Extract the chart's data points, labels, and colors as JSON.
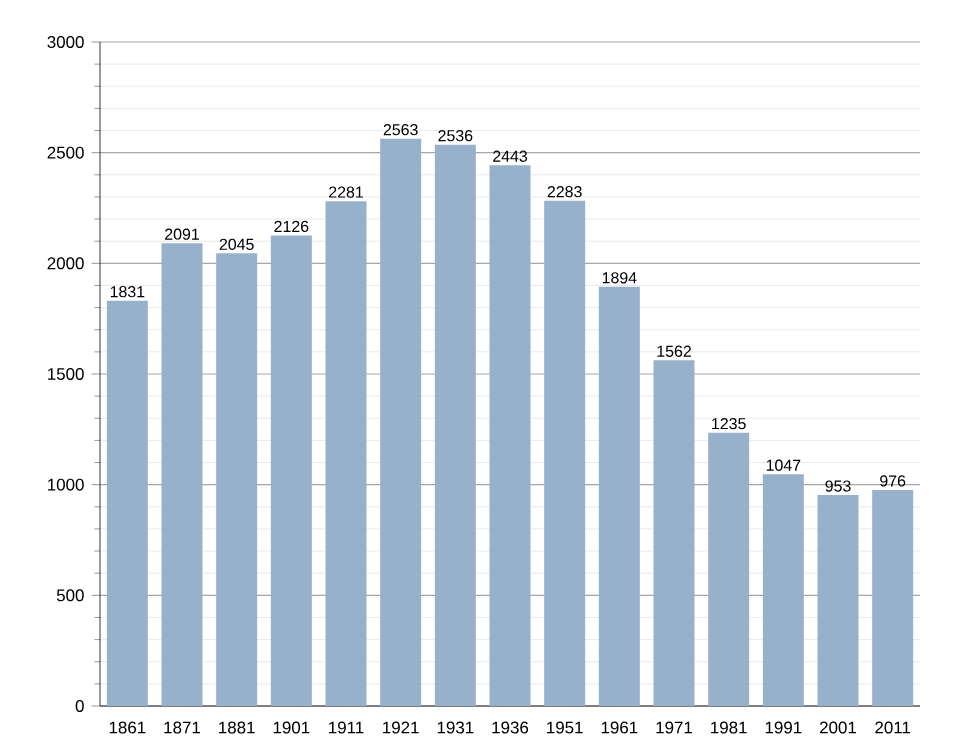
{
  "chart_data": {
    "type": "bar",
    "categories": [
      "1861",
      "1871",
      "1881",
      "1901",
      "1911",
      "1921",
      "1931",
      "1936",
      "1951",
      "1961",
      "1971",
      "1981",
      "1991",
      "2001",
      "2011"
    ],
    "values": [
      1831,
      2091,
      2045,
      2126,
      2281,
      2563,
      2536,
      2443,
      2283,
      1894,
      1562,
      1235,
      1047,
      953,
      976
    ],
    "color": "#98b1cb",
    "ylim": [
      0,
      3000
    ],
    "yticks": [
      0,
      500,
      1000,
      1500,
      2000,
      2500,
      3000
    ],
    "grid": "y",
    "data_labels": true
  }
}
